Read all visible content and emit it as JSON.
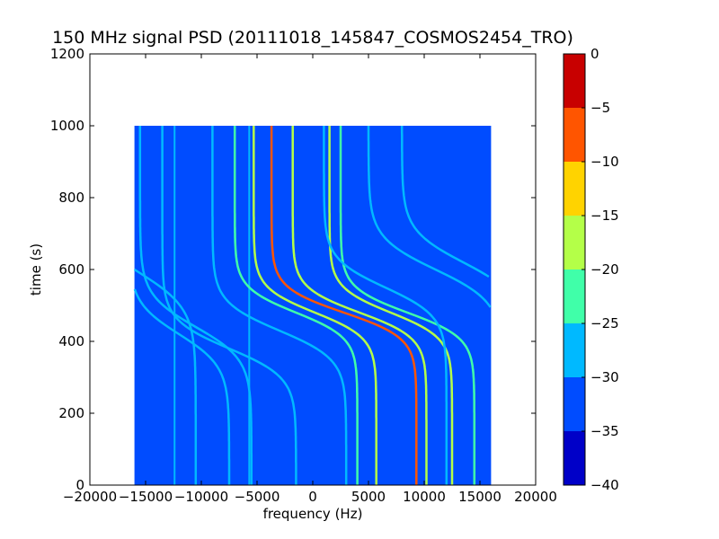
{
  "chart_data": {
    "type": "heatmap",
    "title": "150 MHz signal PSD (20111018_145847_COSMOS2454_TRO)",
    "xlabel": "frequency (Hz)",
    "ylabel": "time (s)",
    "xlim": [
      -20000,
      20000
    ],
    "ylim": [
      0,
      1200
    ],
    "x_ticks": [
      -20000,
      -15000,
      -10000,
      -5000,
      0,
      5000,
      10000,
      15000,
      20000
    ],
    "x_tick_labels": [
      "−20000",
      "−15000",
      "−10000",
      "−5000",
      "0",
      "5000",
      "10000",
      "15000",
      "20000"
    ],
    "y_ticks": [
      0,
      200,
      400,
      600,
      800,
      1000,
      1200
    ],
    "y_tick_labels": [
      "0",
      "200",
      "400",
      "600",
      "800",
      "1000",
      "1200"
    ],
    "data_extent": {
      "x": [
        -16000,
        16000
      ],
      "y": [
        0,
        1000
      ]
    },
    "background_level": -33,
    "vertical_lines": [
      {
        "x": -12400,
        "level": -27
      },
      {
        "x": -5700,
        "level": -25
      }
    ],
    "traces": [
      {
        "f0": -1500,
        "A": 5500,
        "t0": 480,
        "w": 70,
        "level": -22
      },
      {
        "f0": 200,
        "A": 5500,
        "t0": 480,
        "w": 70,
        "level": -16
      },
      {
        "f0": 2800,
        "A": 6500,
        "t0": 480,
        "w": 70,
        "level": -8
      },
      {
        "f0": 4200,
        "A": 6000,
        "t0": 480,
        "w": 70,
        "level": -16
      },
      {
        "f0": 7000,
        "A": 5500,
        "t0": 480,
        "w": 70,
        "level": -18
      },
      {
        "f0": 8500,
        "A": 6000,
        "t0": 480,
        "w": 70,
        "level": -20
      },
      {
        "f0": -3000,
        "A": 6000,
        "t0": 430,
        "w": 80,
        "level": -25
      },
      {
        "f0": 6500,
        "A": 5500,
        "t0": 550,
        "w": 80,
        "level": -26
      },
      {
        "f0": -12000,
        "A": 4500,
        "t0": 420,
        "w": 90,
        "level": -25
      },
      {
        "f0": -10500,
        "A": 5000,
        "t0": 440,
        "w": 90,
        "level": -26
      },
      {
        "f0": -15500,
        "A": 5000,
        "t0": 590,
        "w": 100,
        "level": -25
      },
      {
        "f0": 11000,
        "A": 6000,
        "t0": 600,
        "w": 90,
        "level": -26
      },
      {
        "f0": 13500,
        "A": 5500,
        "t0": 620,
        "w": 90,
        "level": -27
      },
      {
        "f0": -7500,
        "A": 6000,
        "t0": 380,
        "w": 80,
        "level": -27
      }
    ],
    "colorbar": {
      "range": [
        -40,
        0
      ],
      "ticks": [
        0,
        -5,
        -10,
        -15,
        -20,
        -25,
        -30,
        -35,
        -40
      ],
      "tick_labels": [
        "0",
        "−5",
        "−10",
        "−15",
        "−20",
        "−25",
        "−30",
        "−35",
        "−40"
      ],
      "bands": [
        {
          "from": -40,
          "to": -35,
          "color": "#0000c8"
        },
        {
          "from": -35,
          "to": -30,
          "color": "#004cff"
        },
        {
          "from": -30,
          "to": -25,
          "color": "#00b9ff"
        },
        {
          "from": -25,
          "to": -20,
          "color": "#40ffa9"
        },
        {
          "from": -20,
          "to": -15,
          "color": "#b4ff48"
        },
        {
          "from": -15,
          "to": -10,
          "color": "#ffd300"
        },
        {
          "from": -10,
          "to": -5,
          "color": "#ff5500"
        },
        {
          "from": -5,
          "to": 0,
          "color": "#c80000"
        }
      ]
    }
  }
}
